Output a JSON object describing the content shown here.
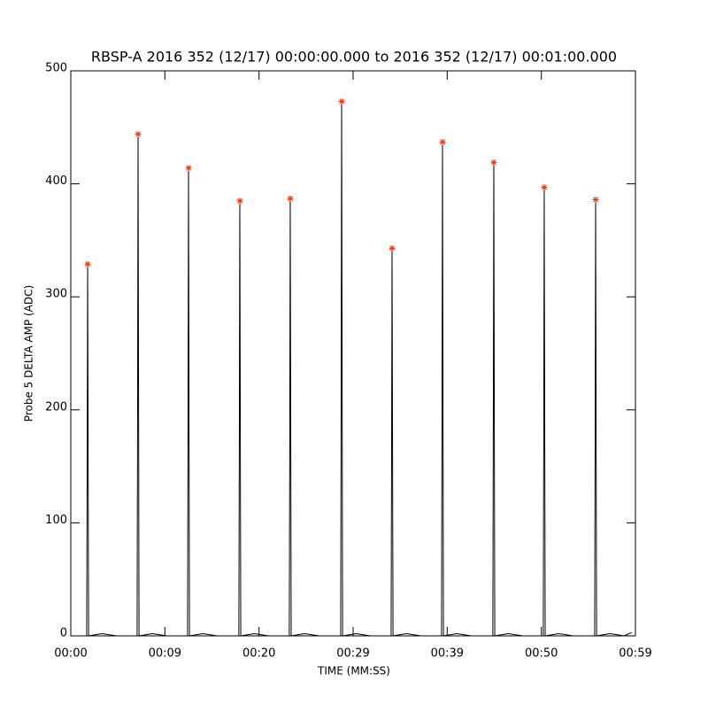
{
  "chart_data": {
    "type": "line",
    "title": "RBSP-A 2016 352 (12/17) 00:00:00.000 to 2016 352 (12/17) 00:01:00.000",
    "xlabel": "TIME (MM:SS)",
    "ylabel": "Probe 5 DELTA AMP (ADC)",
    "xlim": [
      0,
      59
    ],
    "ylim": [
      0,
      500
    ],
    "xticks": [
      {
        "value": 0,
        "label": "00:00"
      },
      {
        "value": 9.83,
        "label": "00:09"
      },
      {
        "value": 19.67,
        "label": "00:20"
      },
      {
        "value": 29.5,
        "label": "00:29"
      },
      {
        "value": 39.33,
        "label": "00:39"
      },
      {
        "value": 49.17,
        "label": "00:50"
      },
      {
        "value": 59,
        "label": "00:59"
      }
    ],
    "yticks": [
      0,
      100,
      200,
      300,
      400,
      500
    ],
    "series": [
      {
        "style": "line",
        "color": "#000000",
        "x": [
          0,
          1.66,
          1.71,
          1.76,
          1.81,
          1.86,
          3.26,
          4.76,
          6.93,
          6.98,
          7.03,
          7.08,
          7.13,
          8.53,
          10.03,
          12.2,
          12.25,
          12.3,
          12.35,
          12.4,
          13.8,
          15.3,
          17.56,
          17.61,
          17.66,
          17.71,
          17.76,
          19.16,
          20.66,
          22.83,
          22.88,
          22.93,
          22.98,
          23.03,
          24.43,
          25.93,
          28.2,
          28.25,
          28.3,
          28.35,
          28.4,
          29.8,
          31.3,
          33.47,
          33.52,
          33.57,
          33.62,
          33.67,
          35.07,
          36.57,
          38.74,
          38.79,
          38.84,
          38.89,
          38.94,
          40.34,
          41.84,
          44.1,
          44.15,
          44.2,
          44.25,
          44.3,
          45.7,
          47.2,
          49.37,
          49.42,
          49.47,
          49.52,
          49.57,
          50.97,
          52.47,
          54.74,
          54.79,
          54.84,
          54.89,
          54.94,
          56.34,
          57.84,
          58.6
        ],
        "values": [
          0,
          0,
          148,
          329,
          165,
          0,
          2,
          0,
          0,
          200,
          444,
          222,
          0,
          2,
          0,
          0,
          186,
          414,
          207,
          0,
          2,
          0,
          0,
          173,
          385,
          193,
          0,
          2,
          0,
          0,
          174,
          387,
          194,
          0,
          2,
          0,
          0,
          213,
          473,
          237,
          0,
          2,
          0,
          0,
          154,
          343,
          172,
          0,
          2,
          0,
          0,
          197,
          437,
          219,
          0,
          2,
          0,
          0,
          189,
          419,
          210,
          0,
          2,
          0,
          0,
          179,
          397,
          199,
          0,
          2,
          0,
          0,
          174,
          386,
          193,
          0,
          2,
          0,
          3
        ]
      },
      {
        "style": "markers",
        "color": "#ff2a00",
        "x": [
          1.76,
          7.03,
          12.3,
          17.66,
          22.93,
          28.3,
          33.57,
          38.84,
          44.2,
          49.47,
          54.84
        ],
        "values": [
          329,
          444,
          414,
          385,
          387,
          473,
          343,
          437,
          419,
          397,
          386
        ]
      }
    ]
  }
}
